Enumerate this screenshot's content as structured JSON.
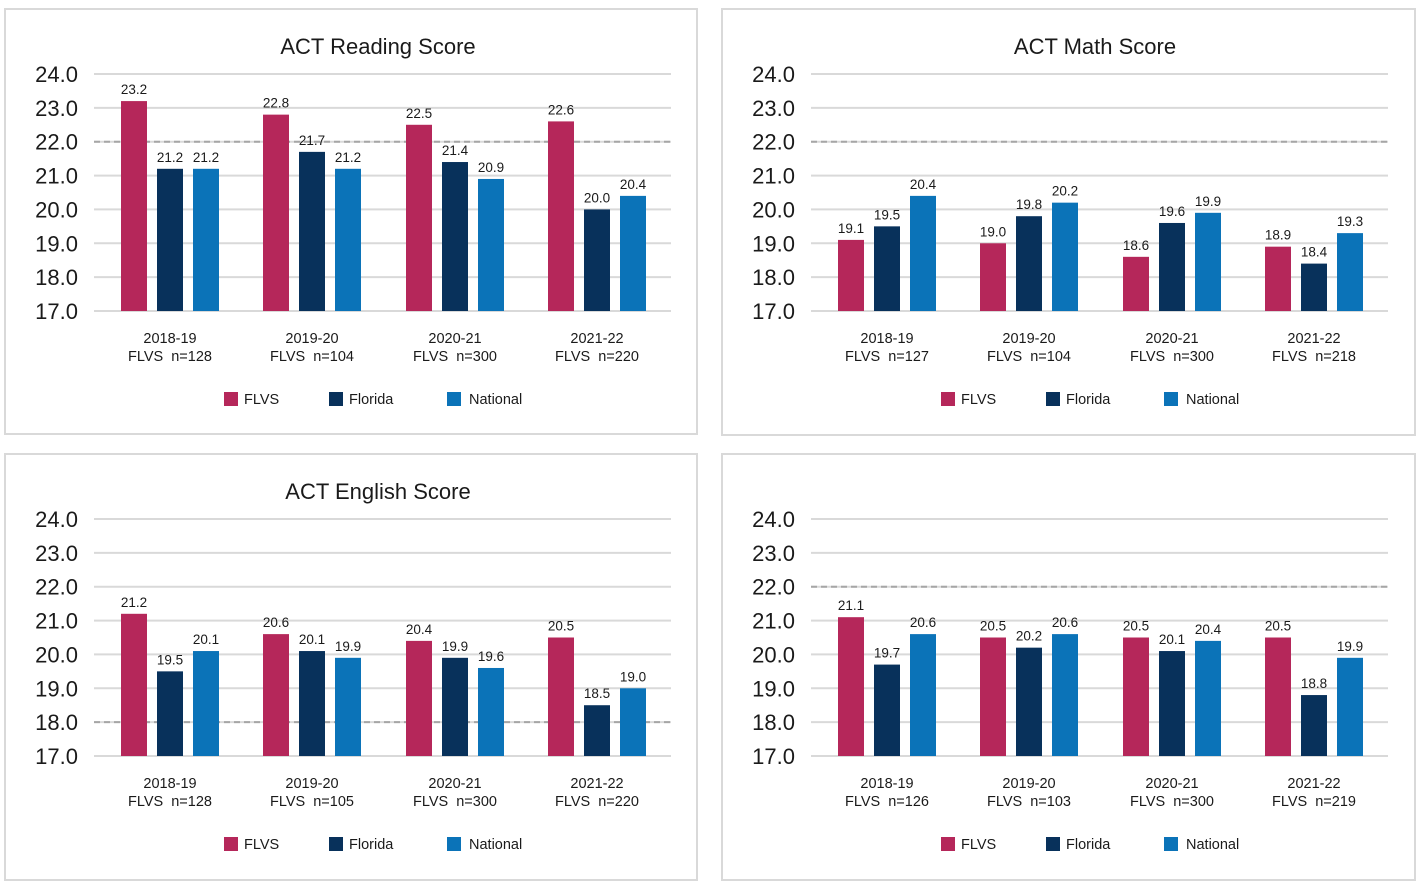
{
  "colors": {
    "FLVS": "#b5275a",
    "Florida": "#08315b",
    "National": "#0b73b8",
    "grid": "#d9d9d9",
    "reference": "#a6a6a6"
  },
  "chart_data": [
    {
      "type": "bar",
      "title": "ACT Reading Score",
      "categories": [
        "2018-19",
        "2019-20",
        "2020-21",
        "2021-22"
      ],
      "category_notes": [
        "FLVS  n=128",
        "FLVS  n=104",
        "FLVS  n=300",
        "FLVS  n=220"
      ],
      "series": [
        {
          "name": "FLVS",
          "values": [
            23.2,
            22.8,
            22.5,
            22.6
          ]
        },
        {
          "name": "Florida",
          "values": [
            21.2,
            21.7,
            21.4,
            20.0
          ]
        },
        {
          "name": "National",
          "values": [
            21.2,
            21.2,
            20.9,
            20.4
          ]
        }
      ],
      "yticks": [
        "24.0",
        "23.0",
        "22.0",
        "21.0",
        "20.0",
        "19.0",
        "18.0",
        "17.0"
      ],
      "ylim": [
        17,
        24
      ],
      "reference_line": 22,
      "legend": "bottom"
    },
    {
      "type": "bar",
      "title": "ACT Math Score",
      "categories": [
        "2018-19",
        "2019-20",
        "2020-21",
        "2021-22"
      ],
      "category_notes": [
        "FLVS  n=127",
        "FLVS  n=104",
        "FLVS  n=300",
        "FLVS  n=218"
      ],
      "series": [
        {
          "name": "FLVS",
          "values": [
            19.1,
            19.0,
            18.6,
            18.9
          ]
        },
        {
          "name": "Florida",
          "values": [
            19.5,
            19.8,
            19.6,
            18.4
          ]
        },
        {
          "name": "National",
          "values": [
            20.4,
            20.2,
            19.9,
            19.3
          ]
        }
      ],
      "yticks": [
        "24.0",
        "23.0",
        "22.0",
        "21.0",
        "20.0",
        "19.0",
        "18.0",
        "17.0"
      ],
      "ylim": [
        17,
        24
      ],
      "reference_line": 22,
      "legend": "bottom"
    },
    {
      "type": "bar",
      "title": "ACT English Score",
      "categories": [
        "2018-19",
        "2019-20",
        "2020-21",
        "2021-22"
      ],
      "category_notes": [
        "FLVS  n=128",
        "FLVS  n=105",
        "FLVS  n=300",
        "FLVS  n=220"
      ],
      "series": [
        {
          "name": "FLVS",
          "values": [
            21.2,
            20.6,
            20.4,
            20.5
          ]
        },
        {
          "name": "Florida",
          "values": [
            19.5,
            20.1,
            19.9,
            18.5
          ]
        },
        {
          "name": "National",
          "values": [
            20.1,
            19.9,
            19.6,
            19.0
          ]
        }
      ],
      "yticks": [
        "24.0",
        "23.0",
        "22.0",
        "21.0",
        "20.0",
        "19.0",
        "18.0",
        "17.0"
      ],
      "ylim": [
        17,
        24
      ],
      "reference_line": 18,
      "legend": "bottom"
    },
    {
      "type": "bar",
      "title": "",
      "categories": [
        "2018-19",
        "2019-20",
        "2020-21",
        "2021-22"
      ],
      "category_notes": [
        "FLVS  n=126",
        "FLVS  n=103",
        "FLVS  n=300",
        "FLVS  n=219"
      ],
      "series": [
        {
          "name": "FLVS",
          "values": [
            21.1,
            20.5,
            20.5,
            20.5
          ]
        },
        {
          "name": "Florida",
          "values": [
            19.7,
            20.2,
            20.1,
            18.8
          ]
        },
        {
          "name": "National",
          "values": [
            20.6,
            20.6,
            20.4,
            19.9
          ]
        }
      ],
      "yticks": [
        "24.0",
        "23.0",
        "22.0",
        "21.0",
        "20.0",
        "19.0",
        "18.0",
        "17.0"
      ],
      "ylim": [
        17,
        24
      ],
      "reference_line": 22,
      "legend": "bottom"
    }
  ]
}
